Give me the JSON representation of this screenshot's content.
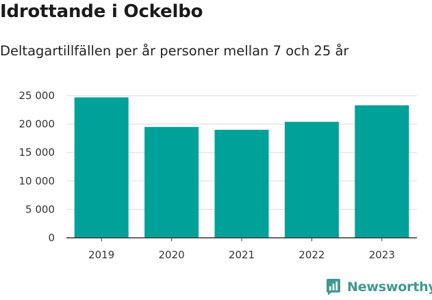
{
  "title": "Idrottande i Ockelbo",
  "subtitle": "Deltagartillfällen per år personer mellan 7 och 25 år",
  "brand": {
    "name": "Newsworthy",
    "icon": "newsworthy-logo-icon",
    "color": "#3f9a8c"
  },
  "colors": {
    "bar": "#00a198",
    "grid": "#d9d9d9",
    "axis": "#333333"
  },
  "chart_data": {
    "type": "bar",
    "categories": [
      "2019",
      "2020",
      "2021",
      "2022",
      "2023"
    ],
    "values": [
      24700,
      19500,
      19000,
      20400,
      23300
    ],
    "y_ticks": [
      0,
      5000,
      10000,
      15000,
      20000,
      25000
    ],
    "y_tick_labels": [
      "0",
      "5 000",
      "10 000",
      "15 000",
      "20 000",
      "25 000"
    ],
    "ylim": [
      0,
      25000
    ],
    "grid": true,
    "legend": "none"
  }
}
